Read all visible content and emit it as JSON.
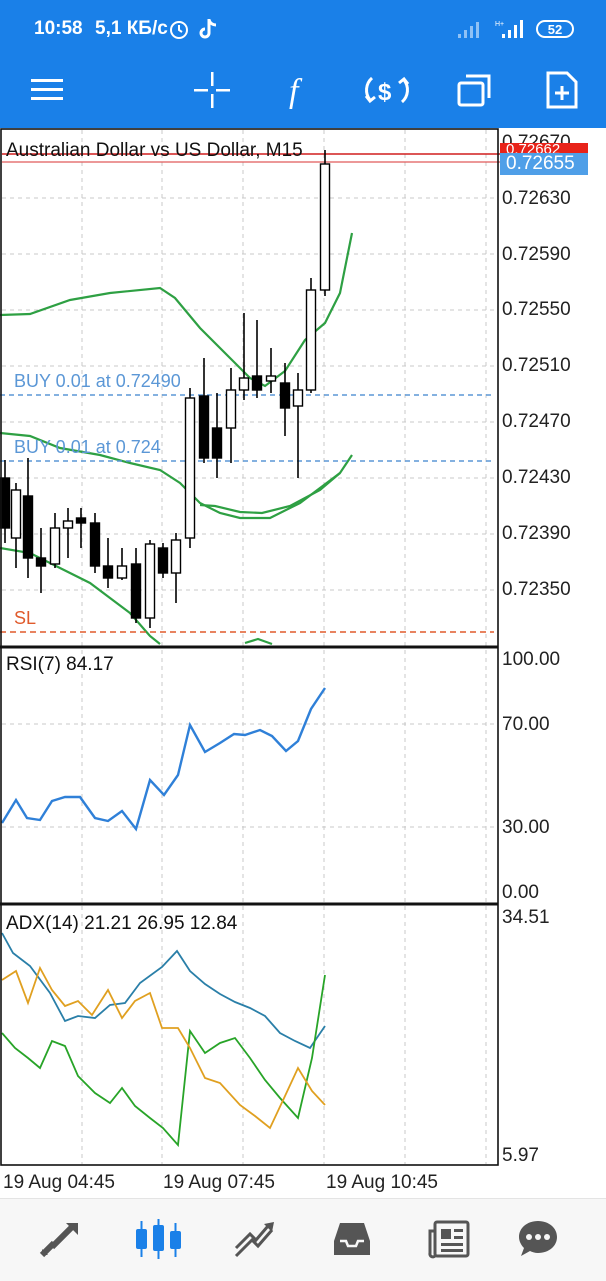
{
  "status_bar": {
    "time": "10:58",
    "speed": "5,1 КБ/с",
    "battery": "52",
    "icons": [
      "alarm-icon",
      "tiktok-icon",
      "signal-icon",
      "signal-icon",
      "battery-icon"
    ]
  },
  "toolbar": {
    "buttons": [
      "menu-icon",
      "crosshair-icon",
      "indicators-icon",
      "trade-icon",
      "windows-icon",
      "templates-icon"
    ]
  },
  "main_chart": {
    "title": "Australian Dollar vs US Dollar, M15",
    "price_labels": [
      "0.72670",
      "0.72630",
      "0.72590",
      "0.72550",
      "0.72510",
      "0.72470",
      "0.72430",
      "0.72390",
      "0.72350"
    ],
    "ask_price": "0.72662",
    "bid_price": "0.72655",
    "orders": [
      {
        "label": "BUY 0.01 at 0.72490"
      },
      {
        "label": "BUY 0.01 at 0.724"
      }
    ],
    "stop_loss_label": "SL",
    "colors": {
      "bollinger": "#2ea043",
      "order_line": "#5b97d6",
      "sl_line": "#e05a2b",
      "ask": "#e8231a",
      "bid": "#4f9fe8"
    }
  },
  "rsi_pane": {
    "title": "RSI(7) 84.17",
    "levels": [
      "100.00",
      "70.00",
      "30.00",
      "0.00"
    ],
    "line_color": "#2f80d8"
  },
  "adx_pane": {
    "title": "ADX(14) 21.21 26.95 12.84",
    "levels": [
      "34.51",
      "5.97"
    ],
    "colors": {
      "adx": "#2a7fa8",
      "plus_di": "#28a428",
      "minus_di": "#e0a020"
    }
  },
  "time_axis": [
    "19 Aug 04:45",
    "19 Aug 07:45",
    "19 Aug 10:45"
  ],
  "bottom_nav": {
    "items": [
      "quotes-icon",
      "chart-icon",
      "trade-icon",
      "history-icon",
      "news-icon",
      "chat-icon"
    ],
    "active": "chart-icon",
    "active_color": "#1a80e8",
    "inactive_color": "#555555"
  }
}
